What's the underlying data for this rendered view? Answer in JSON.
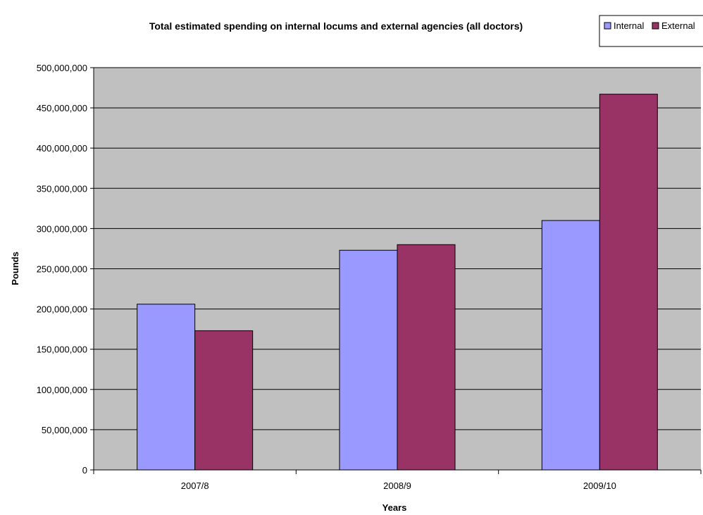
{
  "chart_data": {
    "type": "bar",
    "title": "Total estimated spending on internal locums and external agencies (all doctors)",
    "xlabel": "Years",
    "ylabel": "Pounds",
    "categories": [
      "2007/8",
      "2008/9",
      "2009/10"
    ],
    "series": [
      {
        "name": "Internal",
        "values": [
          206000000,
          273000000,
          310000000
        ],
        "color": "#9999ff"
      },
      {
        "name": "External",
        "values": [
          173000000,
          280000000,
          467000000
        ],
        "color": "#993366"
      }
    ],
    "ylim": [
      0,
      500000000
    ],
    "yticks": [
      "0",
      "50,000,000",
      "100,000,000",
      "150,000,000",
      "200,000,000",
      "250,000,000",
      "300,000,000",
      "350,000,000",
      "400,000,000",
      "450,000,000",
      "500,000,000"
    ],
    "grid": true,
    "legend": "top-right",
    "plot_background": "#c0c0c0"
  }
}
